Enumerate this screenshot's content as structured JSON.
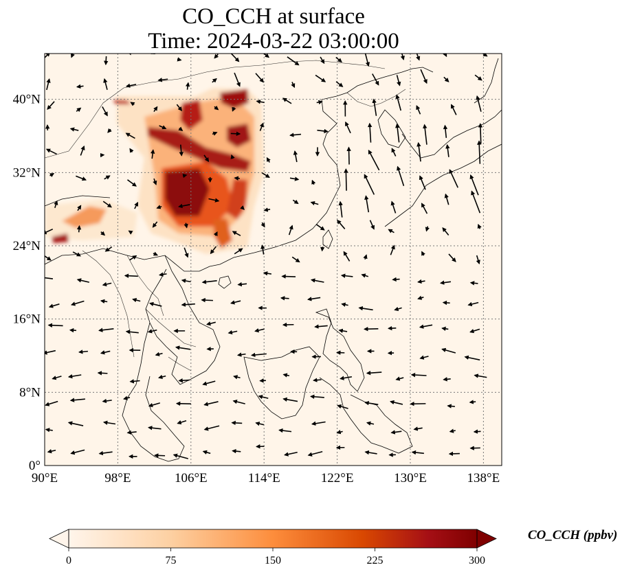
{
  "title_line1": "CO_CCH at surface",
  "title_line2": "Time: 2024-03-22 03:00:00",
  "map": {
    "lon_range": [
      90,
      140
    ],
    "lat_range": [
      0,
      45
    ],
    "lon_ticks": [
      {
        "value": 90,
        "label": "90°E"
      },
      {
        "value": 98,
        "label": "98°E"
      },
      {
        "value": 106,
        "label": "106°E"
      },
      {
        "value": 114,
        "label": "114°E"
      },
      {
        "value": 122,
        "label": "122°E"
      },
      {
        "value": 130,
        "label": "130°E"
      },
      {
        "value": 138,
        "label": "138°E"
      }
    ],
    "lat_ticks": [
      {
        "value": 0,
        "label": "0°"
      },
      {
        "value": 8,
        "label": "8°N"
      },
      {
        "value": 16,
        "label": "16°N"
      },
      {
        "value": 24,
        "label": "24°N"
      },
      {
        "value": 32,
        "label": "32°N"
      },
      {
        "value": 40,
        "label": "40°N"
      }
    ],
    "gridlines": true,
    "background_color": "#fff5e9",
    "high_co_region": "Sichuan Basin / Central China (~102–112°E, 23–41°N)"
  },
  "colorbar": {
    "min": 0,
    "max": 300,
    "ticks": [
      "0",
      "75",
      "150",
      "225",
      "300"
    ],
    "label": "CO_CCH (ppbv)",
    "colors": [
      "#fff5eb",
      "#fdd0a2",
      "#fd8d3c",
      "#d94801",
      "#a50f15",
      "#7f0000"
    ]
  }
}
